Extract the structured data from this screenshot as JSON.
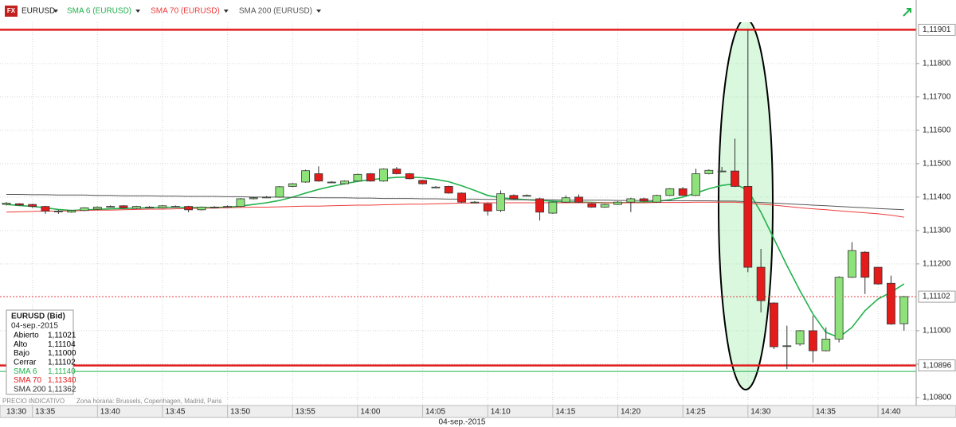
{
  "chart_data": {
    "type": "candlestick",
    "icon_label": "FX",
    "symbol": "EURUSD",
    "up_color": "#8ee27a",
    "down_color": "#e31b1b",
    "categories": [
      null,
      null,
      "13:35",
      null,
      null,
      null,
      null,
      "13:40",
      null,
      null,
      null,
      null,
      "13:45",
      null,
      null,
      null,
      null,
      "13:50",
      null,
      null,
      null,
      null,
      "13:55",
      null,
      null,
      null,
      null,
      "14:00",
      null,
      null,
      null,
      null,
      "14:05",
      null,
      null,
      null,
      null,
      "14:10",
      null,
      null,
      null,
      null,
      "14:15",
      null,
      null,
      null,
      null,
      "14:20",
      null,
      null,
      null,
      null,
      "14:25",
      null,
      null,
      null,
      null,
      "14:30",
      null,
      null,
      null,
      null,
      "14:35",
      null,
      null,
      null,
      null,
      "14:40",
      null,
      null
    ],
    "x_start_label": "13:30",
    "x_date_label": "04-sep.-2015",
    "open": [
      1.11378,
      1.1138,
      1.11378,
      1.11372,
      1.11358,
      1.11355,
      1.1136,
      1.11364,
      1.11372,
      1.11374,
      1.11366,
      1.1137,
      1.11368,
      1.11372,
      1.11372,
      1.11362,
      1.1137,
      1.11372,
      1.11372,
      1.11395,
      1.114,
      1.114,
      1.11432,
      1.11445,
      1.1147,
      1.11445,
      1.1144,
      1.11448,
      1.1147,
      1.11448,
      1.11484,
      1.1147,
      1.1145,
      1.1143,
      1.11432,
      1.11412,
      1.11385,
      1.1138,
      1.1136,
      1.11405,
      1.11405,
      1.11395,
      1.11352,
      1.11385,
      1.114,
      1.1138,
      1.1137,
      1.11378,
      1.11385,
      1.11395,
      1.11385,
      1.11405,
      1.11425,
      1.11405,
      1.1147,
      1.11478,
      1.11478,
      1.11432,
      1.1119,
      1.11083,
      1.10955,
      1.1096,
      1.11,
      1.1094,
      1.10975,
      1.1116,
      1.11235,
      1.1119,
      1.11142,
      1.11021
    ],
    "high": [
      1.11385,
      1.11382,
      1.1138,
      1.11374,
      1.11362,
      1.11362,
      1.1137,
      1.11372,
      1.11375,
      1.11376,
      1.11374,
      1.11373,
      1.11376,
      1.11375,
      1.11374,
      1.11372,
      1.11373,
      1.11375,
      1.11397,
      1.114,
      1.11403,
      1.11433,
      1.11442,
      1.11482,
      1.11492,
      1.11448,
      1.1145,
      1.1147,
      1.11472,
      1.11486,
      1.1149,
      1.11472,
      1.11452,
      1.11433,
      1.11434,
      1.11414,
      1.11388,
      1.11382,
      1.1142,
      1.11408,
      1.11408,
      1.11398,
      1.11387,
      1.11405,
      1.11408,
      1.11382,
      1.1138,
      1.11388,
      1.11398,
      1.11398,
      1.11407,
      1.11427,
      1.1143,
      1.11485,
      1.11483,
      1.1149,
      1.11575,
      1.11901,
      1.11245,
      1.11085,
      1.11015,
      1.11002,
      1.11045,
      1.1101,
      1.11163,
      1.11265,
      1.11238,
      1.1119,
      1.11165,
      1.11104
    ],
    "low": [
      1.11375,
      1.11374,
      1.11368,
      1.1135,
      1.1135,
      1.11353,
      1.11358,
      1.11362,
      1.11369,
      1.11366,
      1.11364,
      1.11367,
      1.11366,
      1.11369,
      1.11355,
      1.1136,
      1.11367,
      1.11369,
      1.1137,
      1.11393,
      1.11397,
      1.11398,
      1.1143,
      1.11443,
      1.11446,
      1.11442,
      1.11438,
      1.11446,
      1.11446,
      1.11446,
      1.11468,
      1.11453,
      1.11438,
      1.11427,
      1.1141,
      1.11383,
      1.11382,
      1.11345,
      1.11355,
      1.11393,
      1.11402,
      1.1133,
      1.1135,
      1.11383,
      1.11383,
      1.11368,
      1.11368,
      1.11376,
      1.11355,
      1.11386,
      1.11383,
      1.11403,
      1.11403,
      1.11403,
      1.11468,
      1.11475,
      1.1143,
      1.11175,
      1.11055,
      1.10945,
      1.10885,
      1.10955,
      1.10905,
      1.10938,
      1.10965,
      1.11158,
      1.1111,
      1.11138,
      1.11018,
      1.11
    ],
    "close": [
      1.11382,
      1.11376,
      1.11372,
      1.11358,
      1.11358,
      1.1136,
      1.11368,
      1.1137,
      1.11372,
      1.11368,
      1.11372,
      1.1137,
      1.11374,
      1.11372,
      1.11362,
      1.1137,
      1.1137,
      1.11372,
      1.11395,
      1.11398,
      1.114,
      1.11431,
      1.1144,
      1.11479,
      1.11448,
      1.11445,
      1.11448,
      1.11468,
      1.11448,
      1.11484,
      1.1147,
      1.11455,
      1.1144,
      1.1143,
      1.11412,
      1.11385,
      1.11385,
      1.11358,
      1.1141,
      1.11395,
      1.11405,
      1.11355,
      1.11385,
      1.11398,
      1.11385,
      1.1137,
      1.11378,
      1.11385,
      1.11395,
      1.11388,
      1.11405,
      1.11425,
      1.11405,
      1.1147,
      1.1148,
      1.11478,
      1.11432,
      1.1119,
      1.1109,
      1.10952,
      1.10955,
      1.11,
      1.1094,
      1.10975,
      1.1116,
      1.1124,
      1.1116,
      1.1114,
      1.1102,
      1.11102
    ],
    "overlays": [
      {
        "name": "SMA 6 (EURUSD)",
        "color": "#22b24c",
        "width": 1.6,
        "values": [
          1.11378,
          1.11375,
          1.11372,
          1.11368,
          1.11363,
          1.1136,
          1.11362,
          1.11363,
          1.11365,
          1.11366,
          1.11367,
          1.11368,
          1.11369,
          1.1137,
          1.11369,
          1.11369,
          1.11369,
          1.1137,
          1.11373,
          1.11378,
          1.11383,
          1.1139,
          1.114,
          1.11412,
          1.11423,
          1.11432,
          1.1144,
          1.11447,
          1.11452,
          1.11456,
          1.11459,
          1.1146,
          1.11458,
          1.11453,
          1.11446,
          1.11434,
          1.1142,
          1.11405,
          1.11398,
          1.11395,
          1.11392,
          1.1139,
          1.11388,
          1.11386,
          1.11385,
          1.11384,
          1.11383,
          1.11383,
          1.11384,
          1.11385,
          1.11387,
          1.11392,
          1.114,
          1.11412,
          1.11425,
          1.11435,
          1.1144,
          1.1142,
          1.11355,
          1.11275,
          1.11195,
          1.1112,
          1.1105,
          1.10995,
          1.1098,
          1.1101,
          1.1106,
          1.11095,
          1.11115,
          1.1114
        ]
      },
      {
        "name": "SMA 70 (EURUSD)",
        "color": "#ee3b3b",
        "width": 1,
        "values": [
          1.11355,
          1.11356,
          1.11357,
          1.11358,
          1.11358,
          1.11359,
          1.1136,
          1.11361,
          1.11361,
          1.11362,
          1.11363,
          1.11364,
          1.11364,
          1.11365,
          1.11366,
          1.11367,
          1.11367,
          1.11368,
          1.11369,
          1.1137,
          1.1137,
          1.11371,
          1.11372,
          1.11373,
          1.11373,
          1.11374,
          1.11375,
          1.11376,
          1.11376,
          1.11377,
          1.11378,
          1.11379,
          1.11379,
          1.1138,
          1.11381,
          1.11382,
          1.11382,
          1.11383,
          1.11383,
          1.11383,
          1.11383,
          1.11383,
          1.11383,
          1.11383,
          1.11383,
          1.11383,
          1.11383,
          1.11383,
          1.11383,
          1.11383,
          1.11384,
          1.11384,
          1.11384,
          1.11385,
          1.11385,
          1.11385,
          1.11385,
          1.11382,
          1.11379,
          1.11376,
          1.11372,
          1.11368,
          1.11365,
          1.11362,
          1.11359,
          1.11356,
          1.11353,
          1.1135,
          1.11346,
          1.1134
        ]
      },
      {
        "name": "SMA 200 (EURUSD)",
        "color": "#555555",
        "width": 1,
        "values": [
          1.11408,
          1.11408,
          1.11407,
          1.11407,
          1.11406,
          1.11406,
          1.11406,
          1.11405,
          1.11405,
          1.11404,
          1.11404,
          1.11404,
          1.11403,
          1.11403,
          1.11402,
          1.11402,
          1.11402,
          1.11401,
          1.11401,
          1.114,
          1.114,
          1.114,
          1.11399,
          1.11399,
          1.11398,
          1.11398,
          1.11398,
          1.11397,
          1.11397,
          1.11396,
          1.11396,
          1.11396,
          1.11395,
          1.11395,
          1.11394,
          1.11394,
          1.11394,
          1.11393,
          1.11393,
          1.11392,
          1.11392,
          1.11392,
          1.11392,
          1.11391,
          1.11391,
          1.11391,
          1.11391,
          1.1139,
          1.1139,
          1.1139,
          1.1139,
          1.11389,
          1.11389,
          1.11389,
          1.11389,
          1.11388,
          1.11388,
          1.11386,
          1.11384,
          1.11382,
          1.1138,
          1.11378,
          1.11376,
          1.11374,
          1.11372,
          1.1137,
          1.11368,
          1.11366,
          1.11364,
          1.11362
        ]
      }
    ],
    "levels": [
      {
        "value": 1.11901,
        "label": "1,11901",
        "color": "#e31b1b",
        "width": 2.5,
        "dash": false
      },
      {
        "value": 1.10896,
        "label": "1,10896",
        "color": "#e31b1b",
        "width": 2.5,
        "dash": false
      },
      {
        "value": 1.11102,
        "label": "1,11102",
        "color": "#e31b1b",
        "width": 0.8,
        "dash": true
      },
      {
        "value": 1.10878,
        "color": "#22b24c",
        "width": 1,
        "dash": false
      }
    ],
    "ylim": [
      1.10807,
      1.1199
    ],
    "yticks": [
      {
        "value": 1.108,
        "label": "1,10800"
      },
      {
        "value": 1.109,
        "label": "1,10900"
      },
      {
        "value": 1.11,
        "label": "1,11000"
      },
      {
        "value": 1.112,
        "label": "1,11200"
      },
      {
        "value": 1.113,
        "label": "1,11300"
      },
      {
        "value": 1.114,
        "label": "1,11400"
      },
      {
        "value": 1.115,
        "label": "1,11500"
      },
      {
        "value": 1.116,
        "label": "1,11600"
      },
      {
        "value": 1.117,
        "label": "1,11700"
      },
      {
        "value": 1.118,
        "label": "1,11800"
      }
    ],
    "grid": true,
    "footer_left": "PRECIO INDICATIVO",
    "footer_zone": "Zona horaria: Brussels, Copenhagen, Madrid, Paris",
    "info_box": {
      "title": "EURUSD (Bid)",
      "date": "04-sep.-2015",
      "rows": [
        {
          "label": "Abierto",
          "value": "1,11021",
          "color": "#000000"
        },
        {
          "label": "Alto",
          "value": "1,11104",
          "color": "#000000"
        },
        {
          "label": "Bajo",
          "value": "1,11000",
          "color": "#000000"
        },
        {
          "label": "Cerrar",
          "value": "1,11102",
          "color": "#000000"
        },
        {
          "label": "SMA 6",
          "value": "1,11140",
          "color": "#22b24c"
        },
        {
          "label": "SMA 70",
          "value": "1,11340",
          "color": "#e31b1b"
        },
        {
          "label": "SMA 200",
          "value": "1,11362",
          "color": "#333333"
        }
      ]
    }
  }
}
